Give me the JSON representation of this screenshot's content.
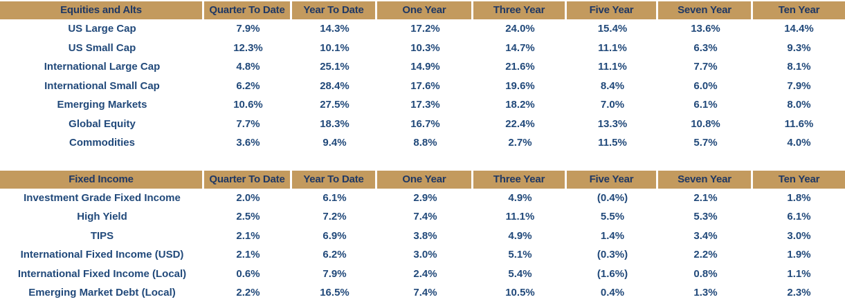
{
  "colors": {
    "header_bg": "#C39A5E",
    "header_text": "#1F3864",
    "body_text": "#21497A",
    "page_bg": "#FFFFFF"
  },
  "tables": [
    {
      "title": "Equities and Alts",
      "columns": [
        "Quarter To Date",
        "Year To Date",
        "One Year",
        "Three Year",
        "Five Year",
        "Seven Year",
        "Ten Year"
      ],
      "rows": [
        {
          "label": "US Large Cap",
          "values": [
            "7.9%",
            "14.3%",
            "17.2%",
            "24.0%",
            "15.4%",
            "13.6%",
            "14.4%"
          ]
        },
        {
          "label": "US Small Cap",
          "values": [
            "12.3%",
            "10.1%",
            "10.3%",
            "14.7%",
            "11.1%",
            "6.3%",
            "9.3%"
          ]
        },
        {
          "label": "International Large Cap",
          "values": [
            "4.8%",
            "25.1%",
            "14.9%",
            "21.6%",
            "11.1%",
            "7.7%",
            "8.1%"
          ]
        },
        {
          "label": "International Small Cap",
          "values": [
            "6.2%",
            "28.4%",
            "17.6%",
            "19.6%",
            "8.4%",
            "6.0%",
            "7.9%"
          ]
        },
        {
          "label": "Emerging Markets",
          "values": [
            "10.6%",
            "27.5%",
            "17.3%",
            "18.2%",
            "7.0%",
            "6.1%",
            "8.0%"
          ]
        },
        {
          "label": "Global Equity",
          "values": [
            "7.7%",
            "18.3%",
            "16.7%",
            "22.4%",
            "13.3%",
            "10.8%",
            "11.6%"
          ]
        },
        {
          "label": "Commodities",
          "values": [
            "3.6%",
            "9.4%",
            "8.8%",
            "2.7%",
            "11.5%",
            "5.7%",
            "4.0%"
          ]
        }
      ]
    },
    {
      "title": "Fixed Income",
      "columns": [
        "Quarter To Date",
        "Year To Date",
        "One Year",
        "Three Year",
        "Five Year",
        "Seven Year",
        "Ten Year"
      ],
      "rows": [
        {
          "label": "Investment Grade Fixed Income",
          "values": [
            "2.0%",
            "6.1%",
            "2.9%",
            "4.9%",
            "(0.4%)",
            "2.1%",
            "1.8%"
          ]
        },
        {
          "label": "High Yield",
          "values": [
            "2.5%",
            "7.2%",
            "7.4%",
            "11.1%",
            "5.5%",
            "5.3%",
            "6.1%"
          ]
        },
        {
          "label": "TIPS",
          "values": [
            "2.1%",
            "6.9%",
            "3.8%",
            "4.9%",
            "1.4%",
            "3.4%",
            "3.0%"
          ]
        },
        {
          "label": "International Fixed Income (USD)",
          "values": [
            "2.1%",
            "6.2%",
            "3.0%",
            "5.1%",
            "(0.3%)",
            "2.2%",
            "1.9%"
          ]
        },
        {
          "label": "International Fixed Income (Local)",
          "values": [
            "0.6%",
            "7.9%",
            "2.4%",
            "5.4%",
            "(1.6%)",
            "0.8%",
            "1.1%"
          ]
        },
        {
          "label": "Emerging Market Debt (Local)",
          "values": [
            "2.2%",
            "16.5%",
            "7.4%",
            "10.5%",
            "0.4%",
            "1.3%",
            "2.3%"
          ]
        }
      ]
    }
  ]
}
